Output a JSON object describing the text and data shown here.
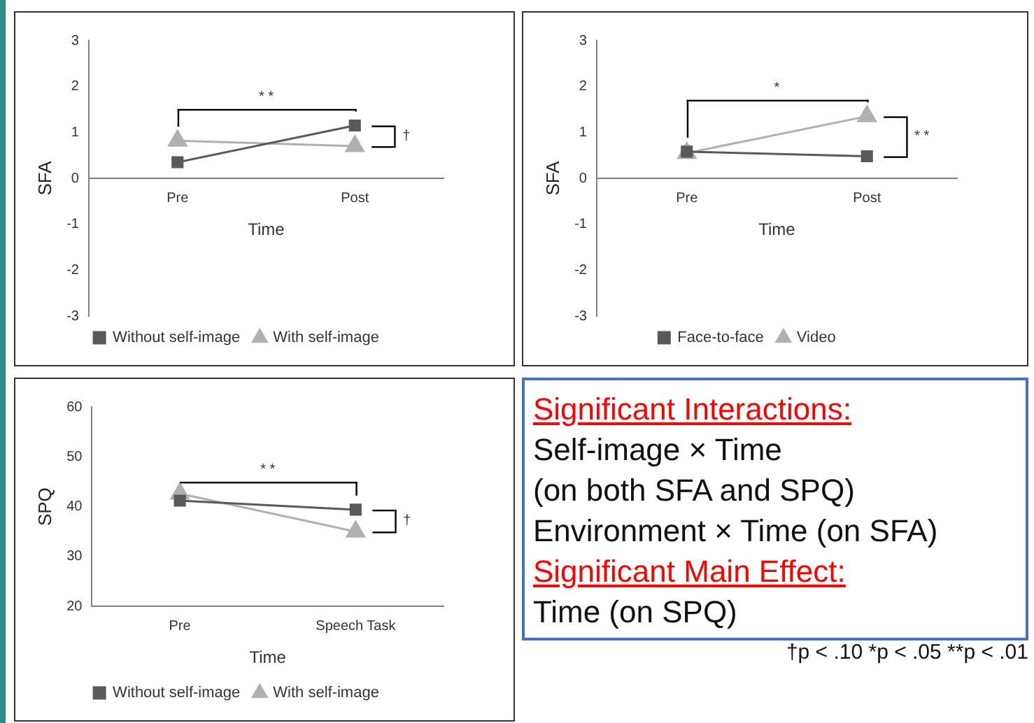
{
  "chart_data": [
    {
      "type": "line",
      "xlabel": "Time",
      "ylabel": "SFA",
      "categories": [
        "Pre",
        "Post"
      ],
      "ylim": [
        -3,
        3
      ],
      "yticks": [
        -3,
        -2,
        -1,
        0,
        1,
        2,
        3
      ],
      "grid": false,
      "legend": "bottom",
      "annotations": [
        "* *",
        "†"
      ],
      "series": [
        {
          "name": "Without self-image",
          "color": "#595959",
          "marker": "square",
          "values": [
            0.35,
            1.15
          ]
        },
        {
          "name": "With self-image",
          "color": "#b0b0b0",
          "marker": "triangle",
          "values": [
            0.82,
            0.7
          ]
        }
      ]
    },
    {
      "type": "line",
      "xlabel": "Time",
      "ylabel": "SFA",
      "categories": [
        "Pre",
        "Post"
      ],
      "ylim": [
        -3,
        3
      ],
      "yticks": [
        -3,
        -2,
        -1,
        0,
        1,
        2,
        3
      ],
      "grid": false,
      "legend": "bottom",
      "annotations": [
        "*",
        "* *"
      ],
      "series": [
        {
          "name": "Face-to-face",
          "color": "#595959",
          "marker": "square",
          "values": [
            0.58,
            0.48
          ]
        },
        {
          "name": "Video",
          "color": "#b0b0b0",
          "marker": "triangle",
          "values": [
            0.55,
            1.35
          ]
        }
      ]
    },
    {
      "type": "line",
      "xlabel": "Time",
      "ylabel": "SPQ",
      "categories": [
        "Pre",
        "Speech Task"
      ],
      "ylim": [
        20,
        60
      ],
      "yticks": [
        20,
        30,
        40,
        50,
        60
      ],
      "grid": false,
      "legend": "bottom",
      "annotations": [
        "* *",
        "†"
      ],
      "series": [
        {
          "name": "Without self-image",
          "color": "#595959",
          "marker": "square",
          "values": [
            41.2,
            39.4
          ]
        },
        {
          "name": "With self-image",
          "color": "#b0b0b0",
          "marker": "triangle",
          "values": [
            42.6,
            35.0
          ]
        }
      ]
    },
    {
      "type": "other",
      "title": "Significant Interactions:",
      "annotations": [
        "Self-image × Time",
        "(on both SFA and SPQ)",
        "Environment × Time (on SFA)",
        "Significant Main Effect:",
        "Time (on SPQ)",
        "†p < .10 *p < .05 **p < .01"
      ]
    }
  ]
}
